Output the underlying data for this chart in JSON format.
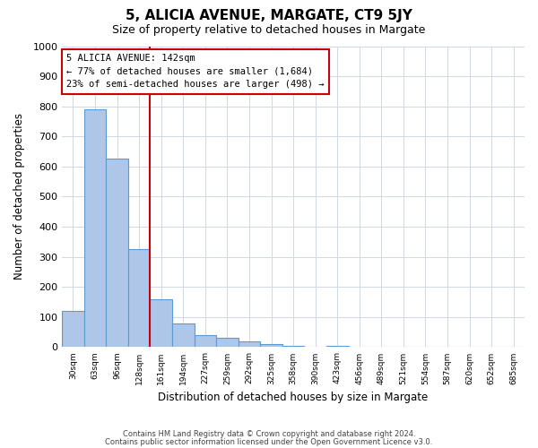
{
  "title": "5, ALICIA AVENUE, MARGATE, CT9 5JY",
  "subtitle": "Size of property relative to detached houses in Margate",
  "xlabel": "Distribution of detached houses by size in Margate",
  "ylabel": "Number of detached properties",
  "bar_color": "#aec6e8",
  "bar_edge_color": "#5b9bd5",
  "bins": [
    "30sqm",
    "63sqm",
    "96sqm",
    "128sqm",
    "161sqm",
    "194sqm",
    "227sqm",
    "259sqm",
    "292sqm",
    "325sqm",
    "358sqm",
    "390sqm",
    "423sqm",
    "456sqm",
    "489sqm",
    "521sqm",
    "554sqm",
    "587sqm",
    "620sqm",
    "652sqm",
    "685sqm"
  ],
  "values": [
    120,
    790,
    625,
    325,
    160,
    80,
    40,
    30,
    18,
    10,
    5,
    0,
    5,
    0,
    0,
    0,
    0,
    0,
    0,
    0,
    0
  ],
  "ylim": [
    0,
    1000
  ],
  "yticks": [
    0,
    100,
    200,
    300,
    400,
    500,
    600,
    700,
    800,
    900,
    1000
  ],
  "property_line_bin": 3.5,
  "annotation_text": "5 ALICIA AVENUE: 142sqm\n← 77% of detached houses are smaller (1,684)\n23% of semi-detached houses are larger (498) →",
  "annotation_box_color": "#cc0000",
  "footer_line1": "Contains HM Land Registry data © Crown copyright and database right 2024.",
  "footer_line2": "Contains public sector information licensed under the Open Government Licence v3.0.",
  "background_color": "#ffffff",
  "grid_color": "#d0d8e8"
}
